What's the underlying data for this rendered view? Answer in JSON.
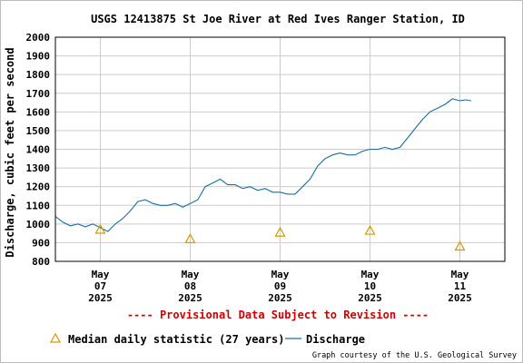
{
  "chart_data": {
    "type": "line",
    "title": "USGS 12413875 St Joe River at Red Ives Ranger Station, ID",
    "ylabel": "Discharge, cubic feet per second",
    "xlabel": "",
    "ylim": [
      800,
      2000
    ],
    "xlim": [
      "2025-05-06T12:00",
      "2025-05-11T12:00"
    ],
    "y_ticks": [
      "800",
      "900",
      "1000",
      "1100",
      "1200",
      "1300",
      "1400",
      "1500",
      "1600",
      "1700",
      "1800",
      "1900",
      "2000"
    ],
    "x_ticks": [
      {
        "month": "May",
        "day": "07",
        "year": "2025",
        "x": "2025-05-07T00:00"
      },
      {
        "month": "May",
        "day": "08",
        "year": "2025",
        "x": "2025-05-08T00:00"
      },
      {
        "month": "May",
        "day": "09",
        "year": "2025",
        "x": "2025-05-09T00:00"
      },
      {
        "month": "May",
        "day": "10",
        "year": "2025",
        "x": "2025-05-10T00:00"
      },
      {
        "month": "May",
        "day": "11",
        "year": "2025",
        "x": "2025-05-11T00:00"
      }
    ],
    "grid": true,
    "colors": {
      "discharge": "#1a6ea3",
      "median": "#d49a06",
      "provisional": "#cc0000"
    },
    "series": [
      {
        "name": "Discharge",
        "style": "line",
        "x": [
          "2025-05-06T12:00",
          "2025-05-06T14:00",
          "2025-05-06T16:00",
          "2025-05-06T18:00",
          "2025-05-06T20:00",
          "2025-05-06T22:00",
          "2025-05-07T00:00",
          "2025-05-07T02:00",
          "2025-05-07T04:00",
          "2025-05-07T06:00",
          "2025-05-07T08:00",
          "2025-05-07T10:00",
          "2025-05-07T12:00",
          "2025-05-07T14:00",
          "2025-05-07T16:00",
          "2025-05-07T18:00",
          "2025-05-07T20:00",
          "2025-05-07T22:00",
          "2025-05-08T00:00",
          "2025-05-08T02:00",
          "2025-05-08T04:00",
          "2025-05-08T06:00",
          "2025-05-08T08:00",
          "2025-05-08T10:00",
          "2025-05-08T12:00",
          "2025-05-08T14:00",
          "2025-05-08T16:00",
          "2025-05-08T18:00",
          "2025-05-08T20:00",
          "2025-05-08T22:00",
          "2025-05-09T00:00",
          "2025-05-09T02:00",
          "2025-05-09T04:00",
          "2025-05-09T06:00",
          "2025-05-09T08:00",
          "2025-05-09T10:00",
          "2025-05-09T12:00",
          "2025-05-09T14:00",
          "2025-05-09T16:00",
          "2025-05-09T18:00",
          "2025-05-09T20:00",
          "2025-05-09T22:00",
          "2025-05-10T00:00",
          "2025-05-10T02:00",
          "2025-05-10T04:00",
          "2025-05-10T06:00",
          "2025-05-10T08:00",
          "2025-05-10T10:00",
          "2025-05-10T12:00",
          "2025-05-10T14:00",
          "2025-05-10T16:00",
          "2025-05-10T18:00",
          "2025-05-10T20:00",
          "2025-05-10T22:00",
          "2025-05-11T00:00",
          "2025-05-11T01:30",
          "2025-05-11T03:00"
        ],
        "values": [
          1040,
          1010,
          990,
          1000,
          985,
          1000,
          980,
          960,
          1000,
          1030,
          1070,
          1120,
          1130,
          1110,
          1100,
          1100,
          1110,
          1090,
          1110,
          1130,
          1200,
          1220,
          1240,
          1210,
          1210,
          1190,
          1200,
          1180,
          1190,
          1170,
          1170,
          1160,
          1160,
          1200,
          1240,
          1310,
          1350,
          1370,
          1380,
          1370,
          1370,
          1390,
          1400,
          1400,
          1410,
          1400,
          1410,
          1460,
          1510,
          1560,
          1600,
          1620,
          1640,
          1670,
          1660,
          1665,
          1660
        ]
      },
      {
        "name": "Median daily statistic (27 years)",
        "style": "triangle",
        "x": [
          "2025-05-07T00:00",
          "2025-05-08T00:00",
          "2025-05-09T00:00",
          "2025-05-10T00:00",
          "2025-05-11T00:00"
        ],
        "values": [
          970,
          920,
          955,
          965,
          880
        ]
      }
    ]
  },
  "provisional_note": "---- Provisional Data Subject to Revision ----",
  "legend": {
    "median_label": "Median daily statistic (27 years)",
    "discharge_label": "Discharge"
  },
  "credit": "Graph courtesy of the U.S. Geological Survey"
}
